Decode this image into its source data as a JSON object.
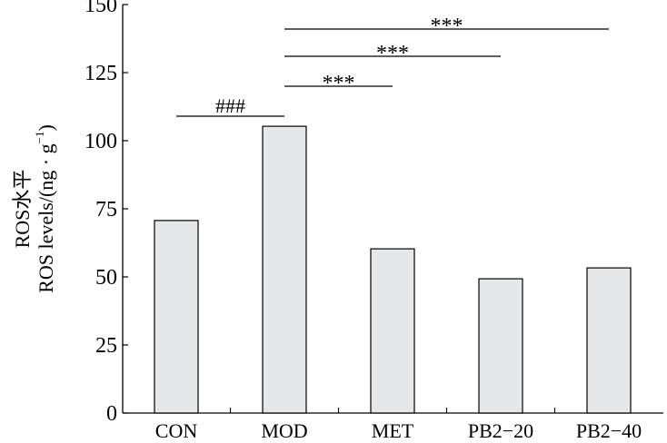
{
  "chart_data": {
    "type": "bar",
    "title": "",
    "xlabel": "",
    "ylabel_cn": "ROS水平",
    "ylabel_en": "ROS levels/(ng · g",
    "ylabel_sup": "−1",
    "ylabel_close": ")",
    "categories": [
      "CON",
      "MOD",
      "MET",
      "PB2−20",
      "PB2−40"
    ],
    "values": [
      70.7,
      105.3,
      60.3,
      49.3,
      53.3
    ],
    "ylim": [
      0,
      150
    ],
    "yticks": [
      0,
      25,
      50,
      75,
      100,
      125,
      150
    ],
    "bar_color": "#e6e7e9",
    "significance": [
      {
        "from": 0,
        "to": 1,
        "label": "###",
        "level": 109
      },
      {
        "from": 1,
        "to": 2,
        "label": "***",
        "level": 120
      },
      {
        "from": 1,
        "to": 3,
        "label": "***",
        "level": 131
      },
      {
        "from": 1,
        "to": 4,
        "label": "***",
        "level": 141
      }
    ]
  }
}
